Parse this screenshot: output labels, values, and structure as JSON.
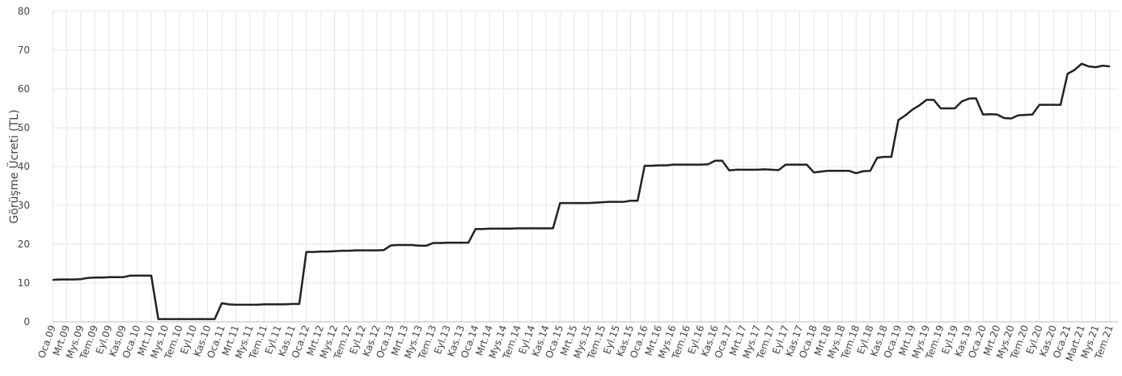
{
  "chart_data": {
    "type": "line",
    "y_label": "Görüşme Ücreti (TL)",
    "categories": [
      "Oca.09",
      null,
      "Mrt.09",
      null,
      "Mys.09",
      null,
      "Tem.09",
      null,
      "Eyl.09",
      null,
      "Kas.09",
      null,
      "Oca.10",
      null,
      "Mrt.10",
      null,
      "Mys.10",
      null,
      "Tem.10",
      null,
      "Eyl.10",
      null,
      "Kas.10",
      null,
      "Oca.11",
      null,
      "Mrt.11",
      null,
      "Mys.11",
      null,
      "Tem.11",
      null,
      "Eyl.11",
      null,
      "Kas.11",
      null,
      "Oca.12",
      null,
      "Mrt.12",
      null,
      "Mys.12",
      null,
      "Tem.12",
      null,
      "Eyl.12",
      null,
      "Kas.12",
      null,
      "Oca.13",
      null,
      "Mrt.13",
      null,
      "Mys.13",
      null,
      "Tem.13",
      null,
      "Eyl.13",
      null,
      "Kas.13",
      null,
      "Oca.14",
      null,
      "Mrt.14",
      null,
      "Mys.14",
      null,
      "Tem.14",
      null,
      "Eyl.14",
      null,
      "Kas.14",
      null,
      "Oca.15",
      null,
      "Mrt.15",
      null,
      "Mys.15",
      null,
      "Tem.15",
      null,
      "Eyl.15",
      null,
      "Kas.15",
      null,
      "Oca.16",
      null,
      "Mrt.16",
      null,
      "Mys.16",
      null,
      "Tem.16",
      null,
      "Eyl.16",
      null,
      "Kas.16",
      null,
      "Oca.17",
      null,
      "Mrt.17",
      null,
      "Mys.17",
      null,
      "Tem.17",
      null,
      "Eyl.17",
      null,
      "Kas.17",
      null,
      "Oca.18",
      null,
      "Mrt.18",
      null,
      "Mys.18",
      null,
      "Tem.18",
      null,
      "Eyl.18",
      null,
      "Kas.18",
      null,
      "Oca.19",
      null,
      "Mrt.19",
      null,
      "Mys.19",
      null,
      "Tem.19",
      null,
      "Eyl.19",
      null,
      "Kas.19",
      null,
      "Oca.20",
      null,
      "Mrt.20",
      null,
      "Mys.20",
      null,
      "Tem.20",
      null,
      "Eyl.20",
      null,
      "Kas.20",
      null,
      "Oca.21",
      null,
      "Mart.21",
      null,
      "Mys.21",
      null,
      "Tem.21"
    ],
    "series": [
      {
        "color": "#222222",
        "values": [
          10.8,
          10.9,
          10.9,
          10.9,
          11.0,
          11.3,
          11.4,
          11.4,
          11.5,
          11.5,
          11.5,
          11.9,
          11.9,
          11.9,
          11.9,
          0.7,
          0.7,
          0.7,
          0.7,
          0.7,
          0.7,
          0.7,
          0.7,
          0.7,
          4.8,
          4.5,
          4.4,
          4.4,
          4.4,
          4.4,
          4.5,
          4.5,
          4.5,
          4.5,
          4.6,
          4.6,
          18.0,
          18.0,
          18.1,
          18.1,
          18.2,
          18.3,
          18.3,
          18.4,
          18.4,
          18.4,
          18.4,
          18.5,
          19.7,
          19.8,
          19.8,
          19.8,
          19.6,
          19.6,
          20.3,
          20.3,
          20.4,
          20.4,
          20.4,
          20.4,
          23.9,
          23.9,
          24.0,
          24.0,
          24.0,
          24.0,
          24.1,
          24.1,
          24.1,
          24.1,
          24.1,
          24.1,
          30.6,
          30.6,
          30.6,
          30.6,
          30.6,
          30.7,
          30.8,
          30.9,
          30.9,
          30.9,
          31.2,
          31.2,
          40.2,
          40.2,
          40.3,
          40.3,
          40.5,
          40.5,
          40.5,
          40.5,
          40.5,
          40.6,
          41.5,
          41.5,
          39.0,
          39.2,
          39.2,
          39.2,
          39.2,
          39.3,
          39.2,
          39.1,
          40.5,
          40.5,
          40.5,
          40.5,
          38.5,
          38.7,
          38.9,
          38.9,
          38.9,
          38.9,
          38.3,
          38.8,
          38.9,
          42.3,
          42.5,
          42.5,
          52.0,
          53.2,
          54.7,
          55.8,
          57.2,
          57.2,
          55.0,
          55.0,
          55.0,
          56.8,
          57.5,
          57.6,
          53.4,
          53.5,
          53.4,
          52.5,
          52.4,
          53.2,
          53.3,
          53.4,
          55.9,
          55.9,
          55.9,
          55.9,
          63.9,
          64.9,
          66.5,
          65.8,
          65.6,
          66.0,
          65.8
        ]
      }
    ],
    "ylim": [
      0,
      80
    ],
    "yticks": [
      0,
      10,
      20,
      30,
      40,
      50,
      60,
      70,
      80
    ],
    "grid": true
  }
}
